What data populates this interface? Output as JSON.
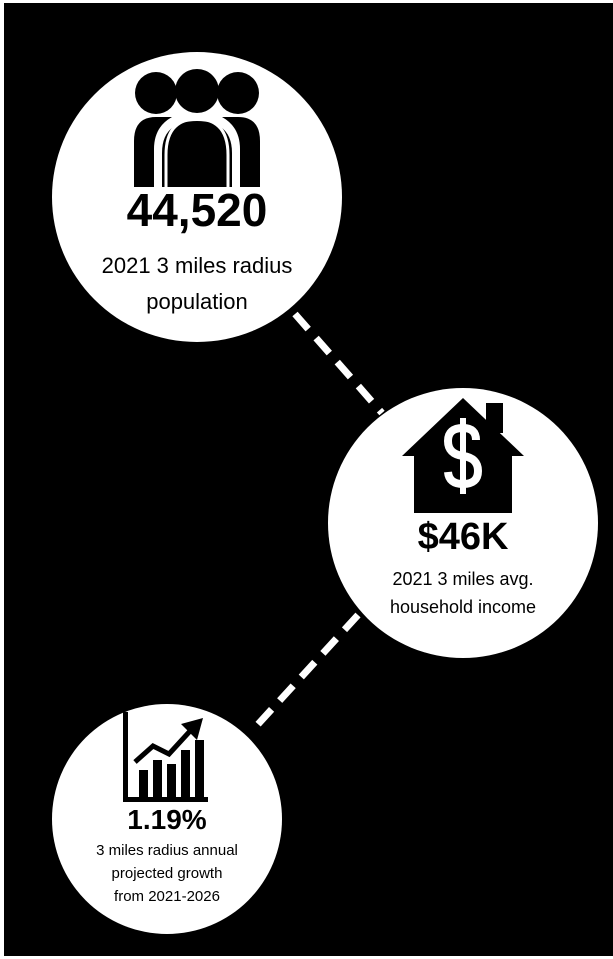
{
  "colors": {
    "background": "#000000",
    "circle": "#ffffff",
    "connector": "#ffffff",
    "icon": "#000000",
    "text": "#000000"
  },
  "stats": {
    "population": {
      "icon": "people-group-icon",
      "value": "44,520",
      "caption_lines": [
        "2021 3 miles radius",
        "population"
      ]
    },
    "income": {
      "icon": "house-dollar-icon",
      "value": "$46K",
      "caption_lines": [
        "2021 3 miles avg.",
        "household income"
      ]
    },
    "growth": {
      "icon": "growth-chart-icon",
      "value": "1.19%",
      "caption_lines": [
        "3 miles radius annual",
        "projected growth",
        "from 2021-2026"
      ]
    }
  }
}
